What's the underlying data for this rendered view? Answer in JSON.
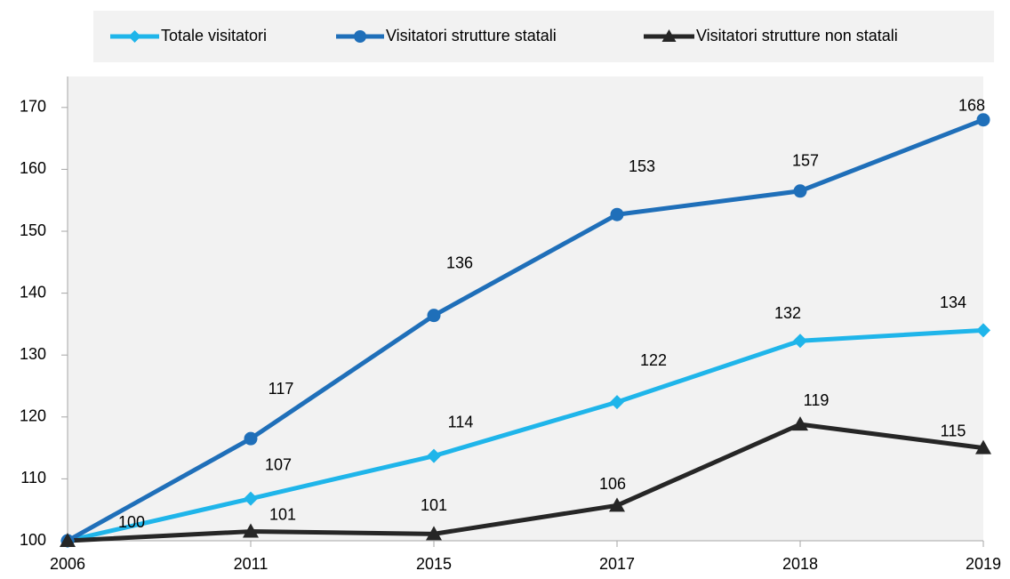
{
  "chart_data": {
    "type": "line",
    "categories": [
      "2006",
      "2011",
      "2015",
      "2017",
      "2018",
      "2019"
    ],
    "series": [
      {
        "name": "Totale visitatori",
        "color": "#1fb5ea",
        "marker": "diamond",
        "values": [
          100,
          106.8,
          113.7,
          122.4,
          132.3,
          134.0
        ],
        "value_labels": [
          "100",
          "107",
          "114",
          "122",
          "132",
          "134"
        ]
      },
      {
        "name": "Visitatori strutture statali",
        "color": "#1f6fb9",
        "marker": "circle",
        "values": [
          100,
          116.5,
          136.4,
          152.7,
          156.5,
          168.0
        ],
        "value_labels": [
          null,
          "117",
          "136",
          "153",
          "157",
          "168"
        ]
      },
      {
        "name": "Visitatori strutture non statali",
        "color": "#262626",
        "marker": "triangle",
        "values": [
          100,
          101.5,
          101.1,
          105.7,
          118.8,
          115.0
        ],
        "value_labels": [
          null,
          "101",
          "101",
          "106",
          "119",
          "115"
        ]
      }
    ],
    "ylim": [
      100,
      175
    ],
    "yticks": [
      100,
      110,
      120,
      130,
      140,
      150,
      160,
      170
    ],
    "legend": "top"
  }
}
